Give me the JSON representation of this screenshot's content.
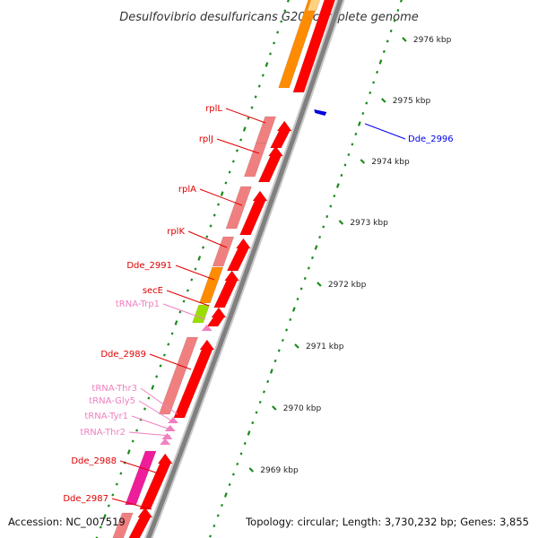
{
  "title": "Desulfovibrio desulfuricans G20, complete genome",
  "footer": {
    "accession": "Accession: NC_007519",
    "topology": "Topology: circular; Length: 3,730,232 bp; Genes: 3,855"
  },
  "colors": {
    "backbone": "#8a8a8a",
    "tick": "#1a8a1a",
    "cds_forward": "#f08080",
    "cds_reverse": "#ff0000",
    "orange_gene": "#ff8c00",
    "lime_gene": "#9ade00",
    "magenta_gene": "#ee1d9a",
    "trna": "#f080c0",
    "label_red": "#e00000",
    "label_pink": "#f080c0",
    "label_blue": "#0000ee",
    "blue_feature": "#0000dd"
  },
  "scale_labels": [
    "2976 kbp",
    "2975 kbp",
    "2974 kbp",
    "2973 kbp",
    "2972 kbp",
    "2971 kbp",
    "2970 kbp",
    "2969 kbp"
  ],
  "gene_labels": [
    {
      "text": "rplL",
      "color": "red"
    },
    {
      "text": "rplJ",
      "color": "red"
    },
    {
      "text": "rplA",
      "color": "red"
    },
    {
      "text": "rplK",
      "color": "red"
    },
    {
      "text": "Dde_2991",
      "color": "red"
    },
    {
      "text": "secE",
      "color": "red"
    },
    {
      "text": "tRNA-Trp1",
      "color": "pink"
    },
    {
      "text": "Dde_2989",
      "color": "red"
    },
    {
      "text": "tRNA-Thr3",
      "color": "pink"
    },
    {
      "text": "tRNA-Gly5",
      "color": "pink"
    },
    {
      "text": "tRNA-Tyr1",
      "color": "pink"
    },
    {
      "text": "tRNA-Thr2",
      "color": "pink"
    },
    {
      "text": "Dde_2988",
      "color": "red"
    },
    {
      "text": "Dde_2987",
      "color": "red"
    }
  ],
  "right_labels": [
    {
      "text": "Dde_2996",
      "color": "blue"
    }
  ]
}
